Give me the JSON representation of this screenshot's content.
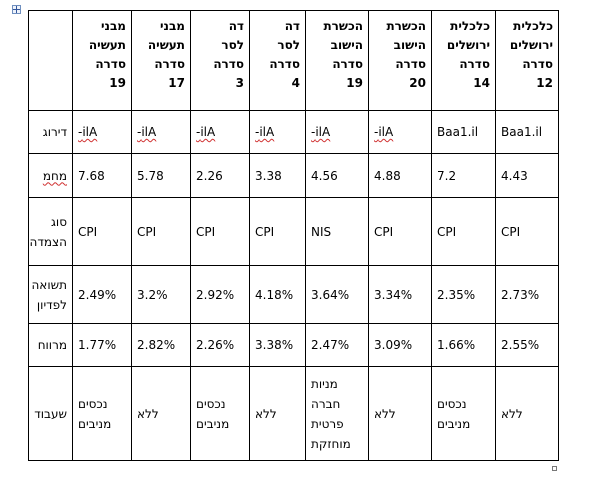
{
  "table": {
    "header": {
      "col1": "כלכלית\nירושלים\nסדרה\n12",
      "col2": "כלכלית\nירושלים\nסדרה\n14",
      "col3": "הכשרת\nהישוב\nסדרה\n20",
      "col4": "הכשרת\nהישוב\nסדרה\n19",
      "col5": "דה\nלסר\nסדרה\n4",
      "col6": "דה\nלסר\nסדרה\n3",
      "col7": "מבני\nתעשיה\nסדרה\n17",
      "col8": "מבני\nתעשיה\nסדרה\n19"
    },
    "rating": {
      "label": "דירוג",
      "col1": "Baa1.il",
      "col2": "Baa1.il",
      "col3": "ilA-",
      "col4": "ilA-",
      "col5": "ilA-",
      "col6": "ilA-",
      "col7": "ilA-",
      "col8": "ilA-"
    },
    "duration": {
      "label": "מחמ",
      "col1": "4.43",
      "col2": "7.2",
      "col3": "4.88",
      "col4": "4.56",
      "col5": "3.38",
      "col6": "2.26",
      "col7": "5.78",
      "col8": "7.68"
    },
    "linkage": {
      "label": "סוג\nהצמדה",
      "col1": "CPI",
      "col2": "CPI",
      "col3": "CPI",
      "col4": "NIS",
      "col5": "CPI",
      "col6": "CPI",
      "col7": "CPI",
      "col8": "CPI"
    },
    "ytm": {
      "label": "תשואה\nלפדיון",
      "col1": "2.73%",
      "col2": "2.35%",
      "col3": "3.34%",
      "col4": "3.64%",
      "col5": "4.18%",
      "col6": "2.92%",
      "col7": "3.2%",
      "col8": "2.49%"
    },
    "spread": {
      "label": "מרווח",
      "col1": "2.55%",
      "col2": "1.66%",
      "col3": "3.09%",
      "col4": "2.47%",
      "col5": "3.38%",
      "col6": "2.26%",
      "col7": "2.82%",
      "col8": "1.77%"
    },
    "pledge": {
      "label": "שעבוד",
      "col1": "ללא",
      "col2": "נכסים\nמניבים",
      "col3": "ללא",
      "col4": "מניות\nחברה\nפרטית\nמוחזקת",
      "col5": "ללא",
      "col6": "נכסים\nמניבים",
      "col7": "ללא",
      "col8": "נכסים\nמניבים"
    }
  }
}
